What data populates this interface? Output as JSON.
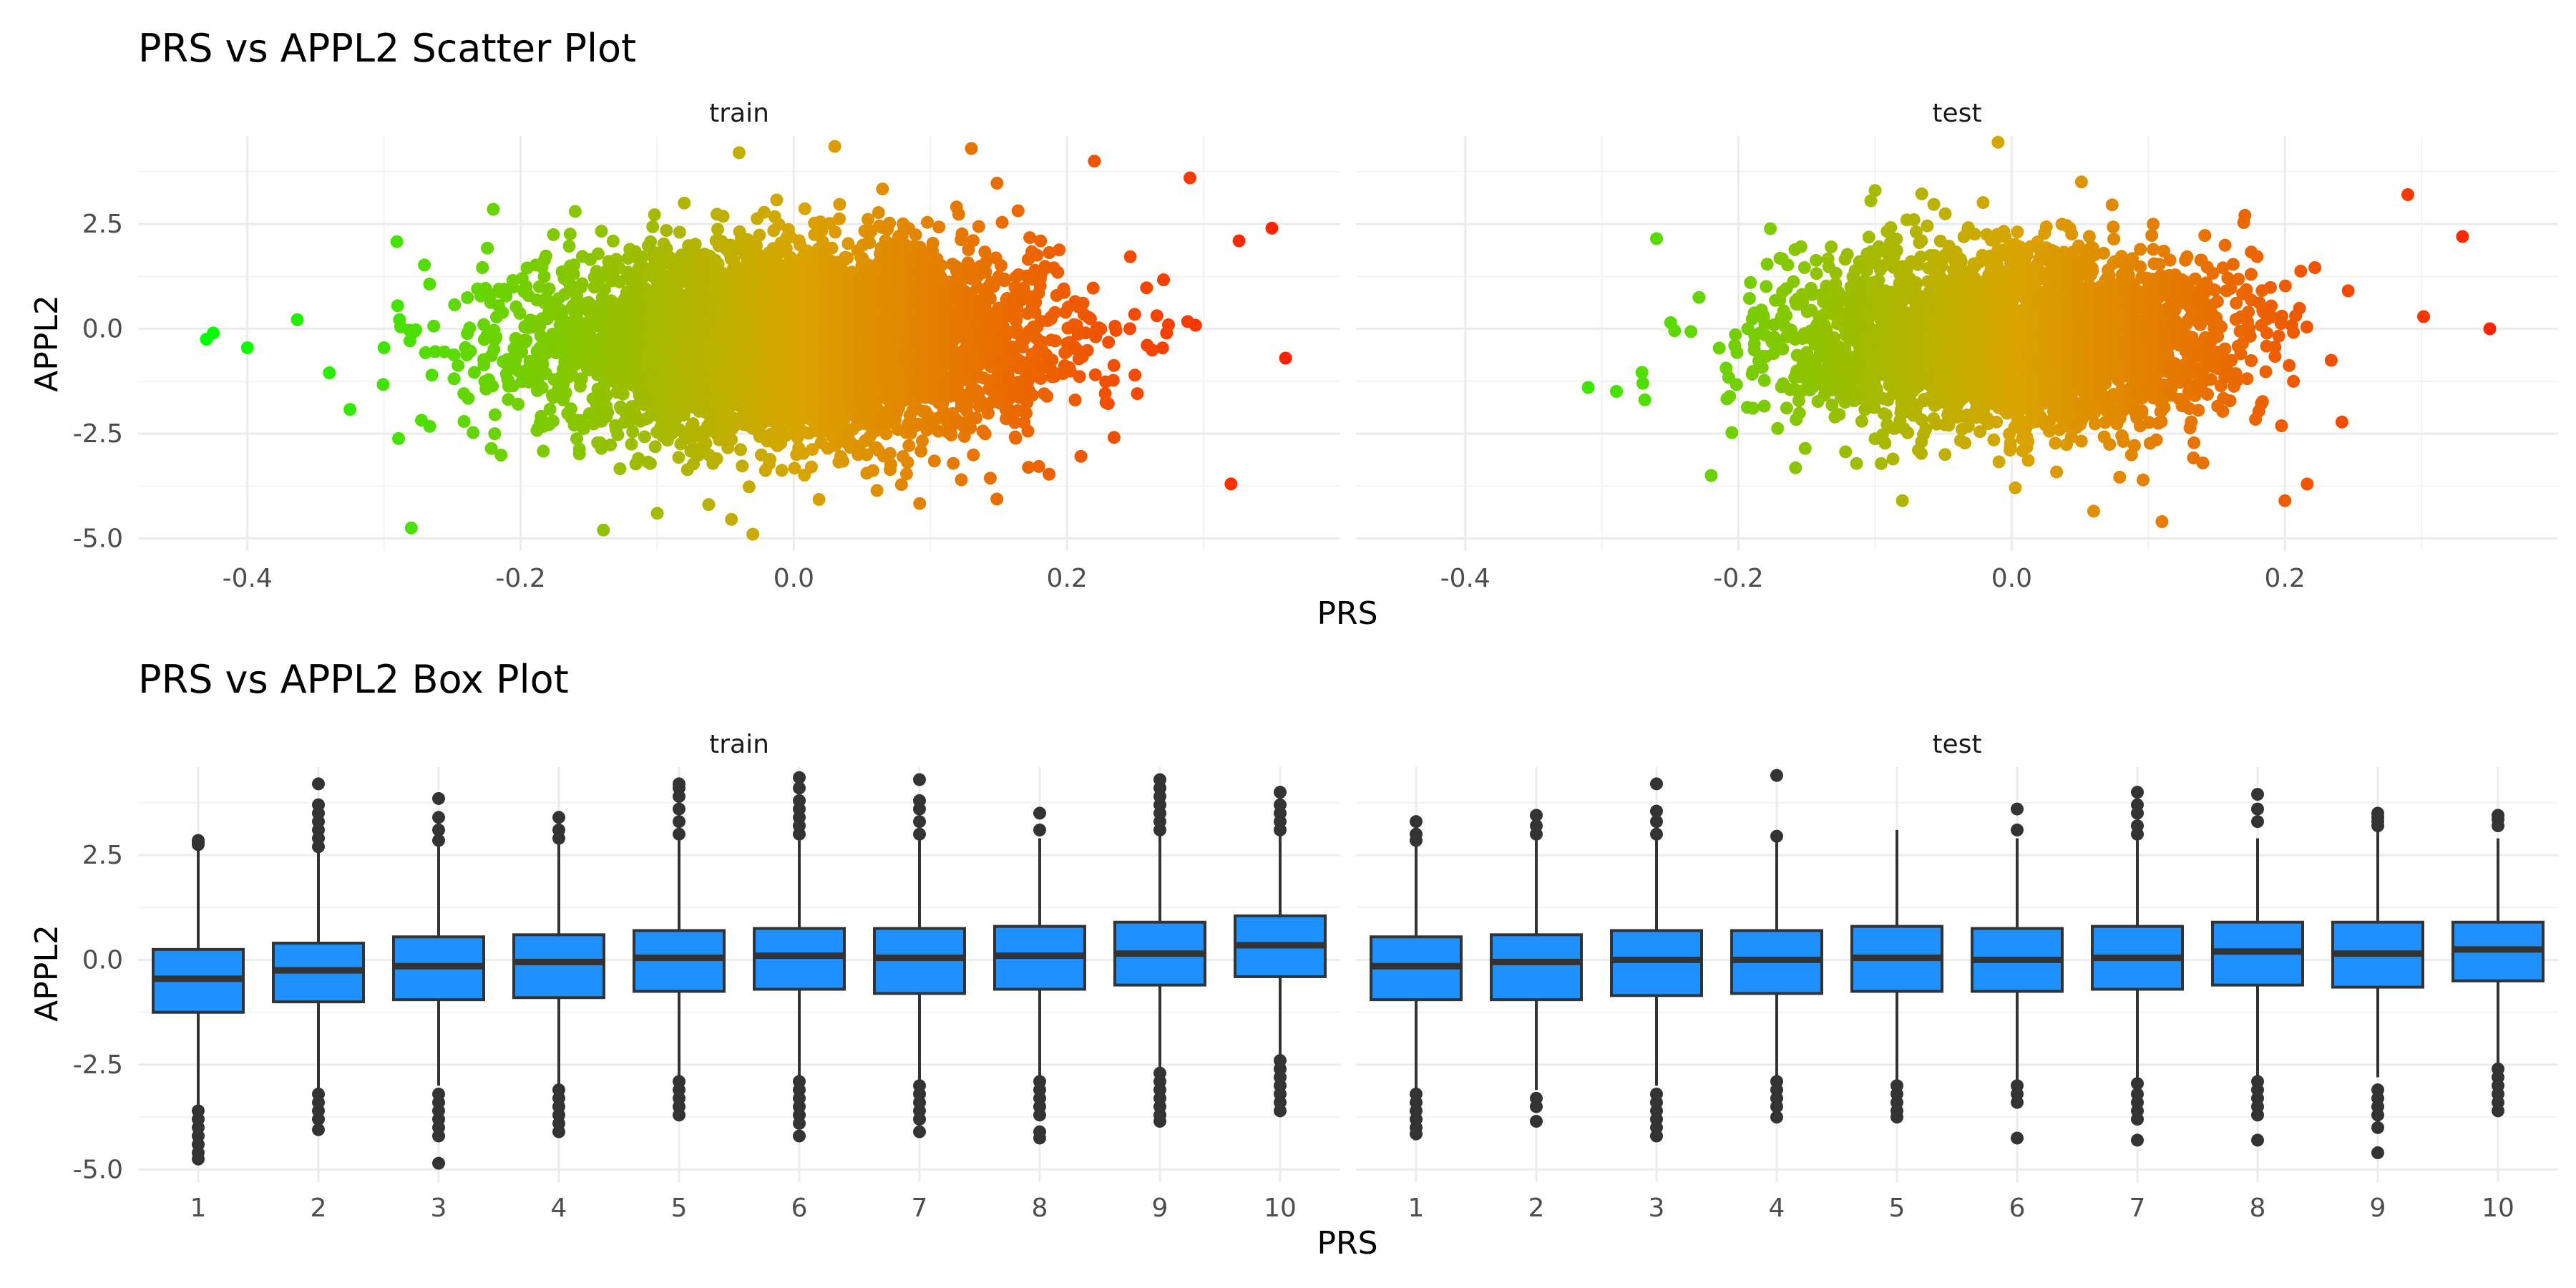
{
  "chart_data": [
    {
      "type": "scatter",
      "title": "PRS vs APPL2 Scatter Plot",
      "xlabel": "PRS",
      "ylabel": "APPL2",
      "facets": [
        "train",
        "test"
      ],
      "xlim": [
        -0.48,
        0.4
      ],
      "ylim": [
        -5.3,
        4.6
      ],
      "xticks": [
        -0.4,
        -0.2,
        0.0,
        0.2
      ],
      "xtick_labels": [
        "-0.4",
        "-0.2",
        "0.0",
        "0.2"
      ],
      "yticks": [
        -5.0,
        -2.5,
        0.0,
        2.5
      ],
      "ytick_labels": [
        "-5.0",
        "-2.5",
        "0.0",
        "2.5"
      ],
      "grid": true,
      "color_scale": {
        "low": "#00ff00",
        "mid": "#d9a400",
        "high": "#ff2000",
        "by": "PRS"
      },
      "point_clouds": {
        "train": {
          "x_mean": 0.0,
          "x_sd": 0.09,
          "y_mean": -0.3,
          "y_sd": 1.1,
          "x_range": [
            -0.43,
            0.36
          ],
          "y_range": [
            -4.8,
            4.3
          ]
        },
        "test": {
          "x_mean": 0.0,
          "x_sd": 0.08,
          "y_mean": -0.2,
          "y_sd": 1.05,
          "x_range": [
            -0.31,
            0.34
          ],
          "y_range": [
            -4.7,
            4.4
          ]
        }
      },
      "series": [
        {
          "facet": "train",
          "points": [
            [
              -0.43,
              -0.25
            ],
            [
              -0.425,
              -0.1
            ],
            [
              -0.4,
              -0.45
            ],
            [
              -0.34,
              -1.05
            ],
            [
              -0.3,
              -0.45
            ],
            [
              -0.29,
              0.55
            ],
            [
              -0.28,
              -4.75
            ],
            [
              -0.22,
              2.85
            ],
            [
              -0.16,
              2.8
            ],
            [
              -0.1,
              -4.4
            ],
            [
              -0.04,
              4.2
            ],
            [
              -0.03,
              -4.9
            ],
            [
              0.03,
              4.35
            ],
            [
              0.13,
              4.3
            ],
            [
              0.22,
              4.0
            ],
            [
              0.29,
              3.6
            ],
            [
              0.32,
              -3.7
            ],
            [
              0.35,
              2.4
            ],
            [
              0.36,
              -0.7
            ]
          ]
        },
        {
          "facet": "test",
          "points": [
            [
              -0.31,
              -1.4
            ],
            [
              -0.27,
              -1.3
            ],
            [
              -0.26,
              2.15
            ],
            [
              -0.22,
              -3.5
            ],
            [
              -0.1,
              3.3
            ],
            [
              -0.08,
              -4.1
            ],
            [
              -0.01,
              4.45
            ],
            [
              0.06,
              -4.35
            ],
            [
              0.11,
              -4.6
            ],
            [
              0.14,
              -3.2
            ],
            [
              0.2,
              -4.1
            ],
            [
              0.29,
              3.2
            ],
            [
              0.33,
              2.2
            ],
            [
              0.35,
              0.0
            ]
          ]
        }
      ]
    },
    {
      "type": "box",
      "title": "PRS vs APPL2 Box Plot",
      "xlabel": "PRS",
      "ylabel": "APPL2",
      "facets": [
        "train",
        "test"
      ],
      "categories": [
        "1",
        "2",
        "3",
        "4",
        "5",
        "6",
        "7",
        "8",
        "9",
        "10"
      ],
      "ylim": [
        -5.3,
        4.6
      ],
      "yticks": [
        -5.0,
        -2.5,
        0.0,
        2.5
      ],
      "ytick_labels": [
        "-5.0",
        "-2.5",
        "0.0",
        "2.5"
      ],
      "grid": true,
      "box_color": "#1e90ff",
      "line_color": "#333333",
      "series": [
        {
          "facet": "train",
          "boxes": [
            {
              "q1": -1.25,
              "median": -0.45,
              "q3": 0.25,
              "lo": -3.5,
              "hi": 2.7,
              "outliers": [
                2.75,
                2.8,
                2.85,
                -3.6,
                -3.8,
                -4.0,
                -4.2,
                -4.4,
                -4.6,
                -4.75
              ]
            },
            {
              "q1": -1.0,
              "median": -0.25,
              "q3": 0.4,
              "lo": -3.1,
              "hi": 2.6,
              "outliers": [
                2.7,
                2.9,
                3.1,
                3.3,
                3.5,
                3.7,
                4.2,
                -3.2,
                -3.4,
                -3.6,
                -3.8,
                -4.05
              ]
            },
            {
              "q1": -0.95,
              "median": -0.15,
              "q3": 0.55,
              "lo": -3.0,
              "hi": 2.7,
              "outliers": [
                2.85,
                3.1,
                3.4,
                3.85,
                -3.2,
                -3.4,
                -3.6,
                -3.8,
                -4.0,
                -4.2,
                -4.85
              ]
            },
            {
              "q1": -0.9,
              "median": -0.05,
              "q3": 0.6,
              "lo": -3.0,
              "hi": 2.8,
              "outliers": [
                2.9,
                3.1,
                3.4,
                -3.1,
                -3.3,
                -3.5,
                -3.7,
                -3.9,
                -4.1
              ]
            },
            {
              "q1": -0.75,
              "median": 0.05,
              "q3": 0.7,
              "lo": -2.8,
              "hi": 2.9,
              "outliers": [
                3.0,
                3.3,
                3.6,
                3.9,
                4.1,
                4.2,
                -2.9,
                -3.1,
                -3.3,
                -3.5,
                -3.7
              ]
            },
            {
              "q1": -0.7,
              "median": 0.1,
              "q3": 0.75,
              "lo": -2.8,
              "hi": 2.9,
              "outliers": [
                3.0,
                3.2,
                3.4,
                3.6,
                3.8,
                4.1,
                4.35,
                -2.9,
                -3.1,
                -3.3,
                -3.5,
                -3.7,
                -3.9,
                -4.2
              ]
            },
            {
              "q1": -0.8,
              "median": 0.05,
              "q3": 0.75,
              "lo": -2.9,
              "hi": 2.9,
              "outliers": [
                3.0,
                3.3,
                3.6,
                3.8,
                4.3,
                -3.0,
                -3.2,
                -3.4,
                -3.6,
                -3.8,
                -4.1
              ]
            },
            {
              "q1": -0.7,
              "median": 0.1,
              "q3": 0.8,
              "lo": -2.8,
              "hi": 2.9,
              "outliers": [
                3.1,
                3.5,
                -2.9,
                -3.1,
                -3.3,
                -3.5,
                -3.7,
                -4.1,
                -4.25
              ]
            },
            {
              "q1": -0.6,
              "median": 0.15,
              "q3": 0.9,
              "lo": -2.6,
              "hi": 3.0,
              "outliers": [
                3.1,
                3.3,
                3.5,
                3.7,
                3.9,
                4.1,
                4.3,
                -2.7,
                -2.9,
                -3.1,
                -3.3,
                -3.5,
                -3.7,
                -3.85
              ]
            },
            {
              "q1": -0.4,
              "median": 0.35,
              "q3": 1.05,
              "lo": -2.3,
              "hi": 3.0,
              "outliers": [
                3.1,
                3.3,
                3.5,
                3.7,
                4.0,
                -2.4,
                -2.6,
                -2.8,
                -3.0,
                -3.2,
                -3.4,
                -3.6
              ]
            }
          ]
        },
        {
          "facet": "test",
          "boxes": [
            {
              "q1": -0.95,
              "median": -0.15,
              "q3": 0.55,
              "lo": -3.1,
              "hi": 2.75,
              "outliers": [
                2.85,
                3.0,
                3.3,
                -3.2,
                -3.4,
                -3.6,
                -3.8,
                -4.0,
                -4.15
              ]
            },
            {
              "q1": -0.95,
              "median": -0.05,
              "q3": 0.6,
              "lo": -3.1,
              "hi": 2.9,
              "outliers": [
                3.0,
                3.2,
                3.45,
                -3.3,
                -3.5,
                -3.85
              ]
            },
            {
              "q1": -0.85,
              "median": 0.0,
              "q3": 0.7,
              "lo": -3.0,
              "hi": 2.9,
              "outliers": [
                3.0,
                3.3,
                3.55,
                4.2,
                -3.2,
                -3.4,
                -3.6,
                -3.8,
                -4.0,
                -4.2
              ]
            },
            {
              "q1": -0.8,
              "median": 0.0,
              "q3": 0.7,
              "lo": -2.9,
              "hi": 2.9,
              "outliers": [
                2.95,
                4.4,
                -2.9,
                -3.1,
                -3.3,
                -3.5,
                -3.75
              ]
            },
            {
              "q1": -0.75,
              "median": 0.05,
              "q3": 0.8,
              "lo": -2.9,
              "hi": 3.1,
              "outliers": [
                -3.0,
                -3.2,
                -3.4,
                -3.6,
                -3.75
              ]
            },
            {
              "q1": -0.75,
              "median": 0.0,
              "q3": 0.75,
              "lo": -2.9,
              "hi": 2.9,
              "outliers": [
                3.1,
                3.6,
                -3.0,
                -3.2,
                -3.4,
                -4.25
              ]
            },
            {
              "q1": -0.7,
              "median": 0.05,
              "q3": 0.8,
              "lo": -2.9,
              "hi": 2.9,
              "outliers": [
                3.0,
                3.2,
                3.5,
                3.7,
                4.0,
                -2.95,
                -3.2,
                -3.4,
                -3.6,
                -3.8,
                -4.3
              ]
            },
            {
              "q1": -0.6,
              "median": 0.2,
              "q3": 0.9,
              "lo": -2.8,
              "hi": 2.9,
              "outliers": [
                3.3,
                3.6,
                3.95,
                -2.9,
                -3.1,
                -3.3,
                -3.5,
                -3.7,
                -4.3
              ]
            },
            {
              "q1": -0.65,
              "median": 0.15,
              "q3": 0.9,
              "lo": -2.8,
              "hi": 3.1,
              "outliers": [
                3.2,
                3.3,
                3.4,
                3.5,
                -3.1,
                -3.3,
                -3.5,
                -3.7,
                -4.0,
                -4.6
              ]
            },
            {
              "q1": -0.5,
              "median": 0.25,
              "q3": 0.9,
              "lo": -2.5,
              "hi": 2.9,
              "outliers": [
                3.2,
                3.35,
                3.45,
                -2.6,
                -2.8,
                -3.0,
                -3.2,
                -3.4,
                -3.6
              ]
            }
          ]
        }
      ]
    }
  ]
}
